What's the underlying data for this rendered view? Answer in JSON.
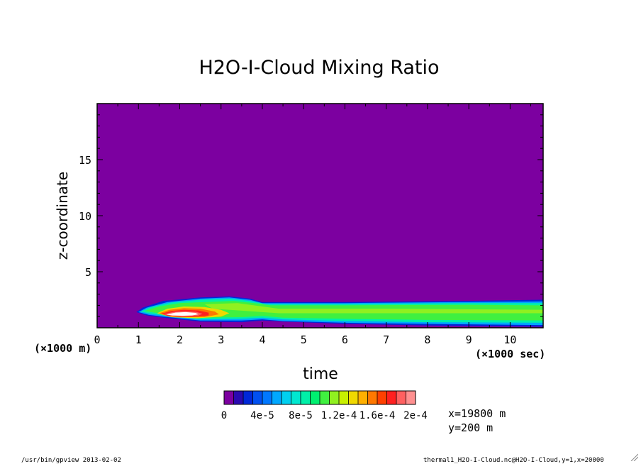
{
  "chart_data": {
    "type": "heatmap",
    "title": "H2O-I-Cloud Mixing Ratio",
    "xlabel": "time",
    "ylabel": "z-coordinate",
    "x_unit_label": "(×1000 sec)",
    "y_unit_label": "(×1000 m)",
    "xlim": [
      0,
      10.8
    ],
    "ylim": [
      0,
      20
    ],
    "x_ticks": [
      "0",
      "1",
      "2",
      "3",
      "4",
      "5",
      "6",
      "7",
      "8",
      "9",
      "10"
    ],
    "y_ticks": [
      "5",
      "10",
      "15"
    ],
    "colorbar": {
      "levels": [
        "0",
        "4e-5",
        "8e-5",
        "1.2e-4",
        "1.6e-4",
        "2e-4"
      ],
      "colors": [
        "#7c00a0",
        "#2a0ab0",
        "#0028d8",
        "#0050f0",
        "#0078ff",
        "#00a8ff",
        "#00d0f0",
        "#00e8d0",
        "#00f0a8",
        "#00f070",
        "#40f040",
        "#90f020",
        "#c8f000",
        "#f0d800",
        "#ffb000",
        "#ff7800",
        "#ff4000",
        "#ff2020",
        "#ff6060",
        "#ff9090"
      ],
      "min": 0,
      "max": 0.0002
    },
    "annotations": [
      "x=19800 m",
      "y=200 m"
    ]
  },
  "footer": {
    "left": "/usr/bin/gpview  2013-02-02",
    "right": "thermal1_H2O-I-Cloud.nc@H2O-I-Cloud,y=1,x=20000"
  }
}
